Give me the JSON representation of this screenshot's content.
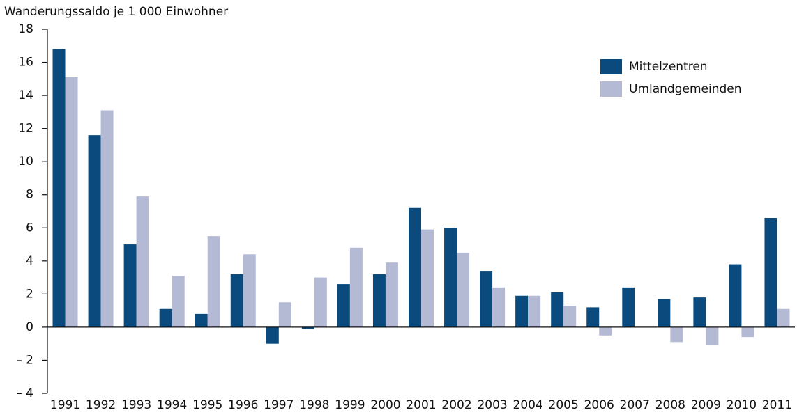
{
  "chart_data": {
    "type": "bar",
    "title": "Wanderungssaldo je 1 000 Einwohner",
    "categories": [
      "1991",
      "1992",
      "1993",
      "1994",
      "1995",
      "1996",
      "1997",
      "1998",
      "1999",
      "2000",
      "2001",
      "2002",
      "2003",
      "2004",
      "2005",
      "2006",
      "2007",
      "2008",
      "2009",
      "2010",
      "2011"
    ],
    "series": [
      {
        "name": "Mittelzentren",
        "color": "#0b4a7d",
        "values": [
          16.8,
          11.6,
          5.0,
          1.1,
          0.8,
          3.2,
          -1.0,
          -0.1,
          2.6,
          3.2,
          7.2,
          6.0,
          3.4,
          1.9,
          2.1,
          1.2,
          2.4,
          1.7,
          1.8,
          3.8,
          6.6
        ]
      },
      {
        "name": "Umlandgemeinden",
        "color": "#b4b9d4",
        "values": [
          15.1,
          13.1,
          7.9,
          3.1,
          5.5,
          4.4,
          1.5,
          3.0,
          4.8,
          3.9,
          5.9,
          4.5,
          2.4,
          1.9,
          1.3,
          -0.5,
          0,
          -0.9,
          -1.1,
          -0.6,
          1.1
        ]
      }
    ],
    "ylim": [
      -4,
      18
    ],
    "yticks": [
      18,
      16,
      14,
      12,
      10,
      8,
      6,
      4,
      2,
      0,
      {
        "value": -2,
        "label": "– 2"
      },
      {
        "value": -4,
        "label": "– 4"
      }
    ],
    "grid": false,
    "legend": "top-right"
  }
}
